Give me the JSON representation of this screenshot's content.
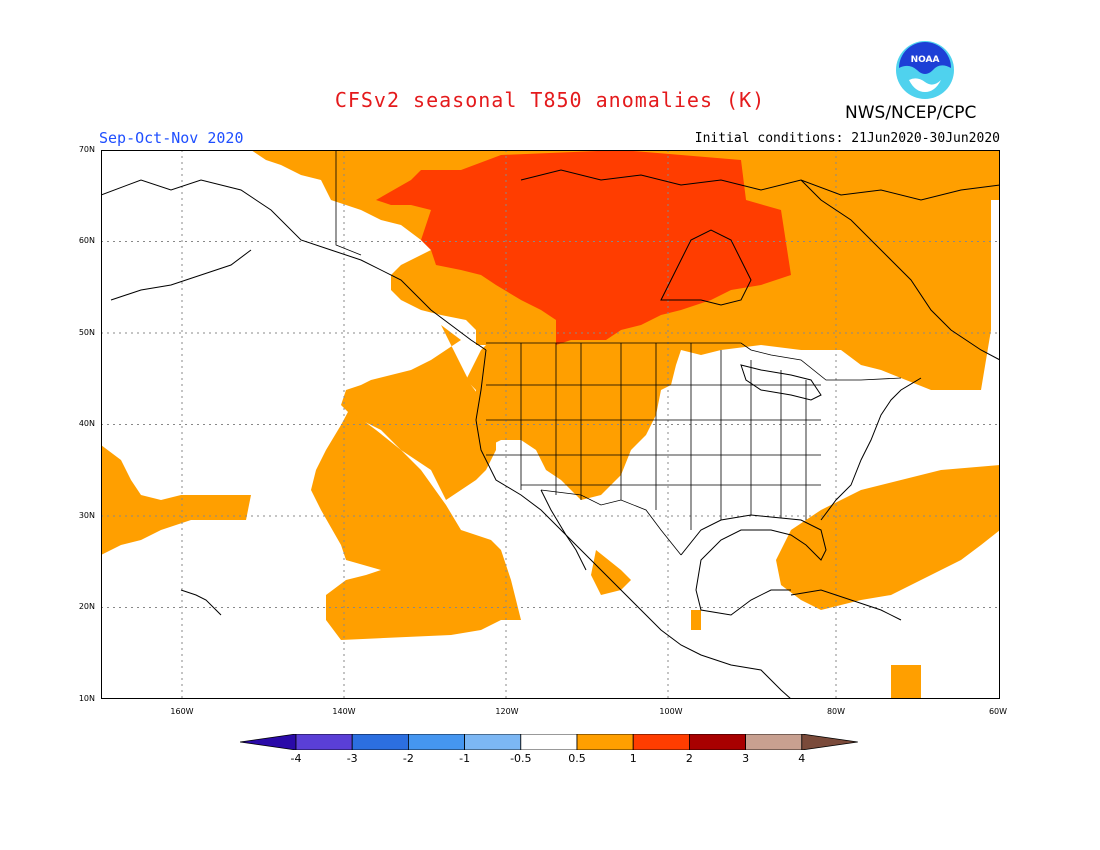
{
  "header": {
    "title": "CFSv2 seasonal T850 anomalies (K)",
    "agency": "NWS/NCEP/CPC",
    "season": "Sep-Oct-Nov 2020",
    "initial_conditions": "Initial conditions: 21Jun2020-30Jun2020",
    "logo_text": "NOAA"
  },
  "colors": {
    "title": "#e41a1c",
    "season": "#1f4fff",
    "anomaly_0_5_to_1": "#ff9f00",
    "anomaly_1_to_2": "#ff3d00",
    "logo_blue": "#1d3fd6",
    "logo_cyan": "#4fd2ee",
    "grid": "#888888",
    "coast": "#000000"
  },
  "axes": {
    "lat_labels": [
      "70N",
      "60N",
      "50N",
      "40N",
      "30N",
      "20N",
      "10N"
    ],
    "lon_labels": [
      "160W",
      "140W",
      "120W",
      "100W",
      "80W",
      "60W"
    ],
    "lat_range": [
      10,
      70
    ],
    "lon_range": [
      -171,
      -60
    ]
  },
  "colorbar": {
    "tick_labels": [
      "-4",
      "-3",
      "-2",
      "-1",
      "-0.5",
      "0.5",
      "1",
      "2",
      "3",
      "4"
    ],
    "bins": [
      {
        "color": "#2a0aa8"
      },
      {
        "color": "#5a3fd6"
      },
      {
        "color": "#2c6fe0"
      },
      {
        "color": "#4596f0"
      },
      {
        "color": "#7cb7f4"
      },
      {
        "color": "#ffffff"
      },
      {
        "color": "#ff9f00"
      },
      {
        "color": "#ff3d00"
      },
      {
        "color": "#a80000"
      },
      {
        "color": "#c8a090"
      },
      {
        "color": "#7a4a3a"
      }
    ]
  }
}
